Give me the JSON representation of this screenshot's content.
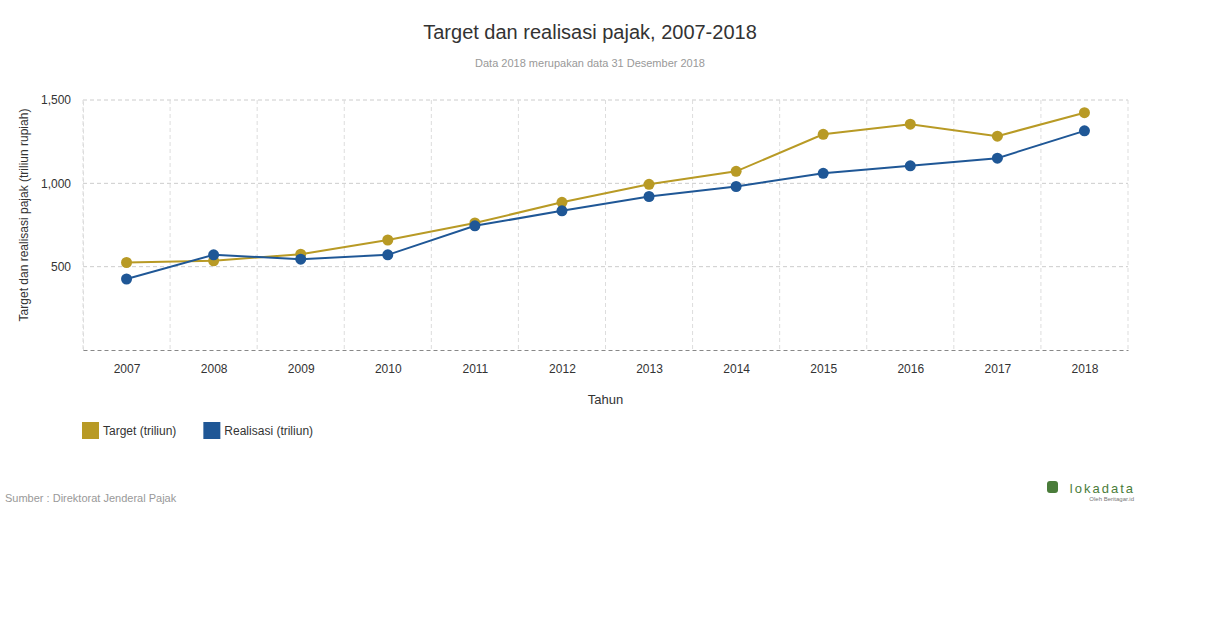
{
  "chart_data": {
    "type": "line",
    "title": "Target dan realisasi pajak, 2007-2018",
    "subtitle": "Data 2018 merupakan data 31 Desember 2018",
    "x_label": "Tahun",
    "y_label": "Target dan realisasi pajak (triliun rupiah)",
    "source": "Sumber : Direktorat Jenderal Pajak",
    "annotations": [
      "lokadata",
      "Oleh Beritagar.id"
    ],
    "categories": [
      "2007",
      "2008",
      "2009",
      "2010",
      "2011",
      "2012",
      "2013",
      "2014",
      "2015",
      "2016",
      "2017",
      "2018"
    ],
    "series": [
      {
        "name": "Target (triliun)",
        "color": "#b89a25",
        "marker": "circle",
        "line_style": "solid",
        "values": [
          525,
          535,
          575,
          660,
          762,
          886,
          994,
          1072,
          1294,
          1355,
          1283,
          1424
        ]
      },
      {
        "name": "Realisasi (triliun)",
        "color": "#1f5796",
        "marker": "circle",
        "line_style": "solid",
        "values": [
          426,
          571,
          545,
          571,
          745,
          835,
          921,
          981,
          1060,
          1105,
          1151,
          1315
        ]
      }
    ],
    "ylim": [
      0,
      1500
    ],
    "yticks": [
      500,
      {
        "value": 1000,
        "label": "1,000"
      },
      {
        "value": 1500,
        "label": "1,500"
      }
    ],
    "grid": true,
    "legend": "bottom-left"
  }
}
